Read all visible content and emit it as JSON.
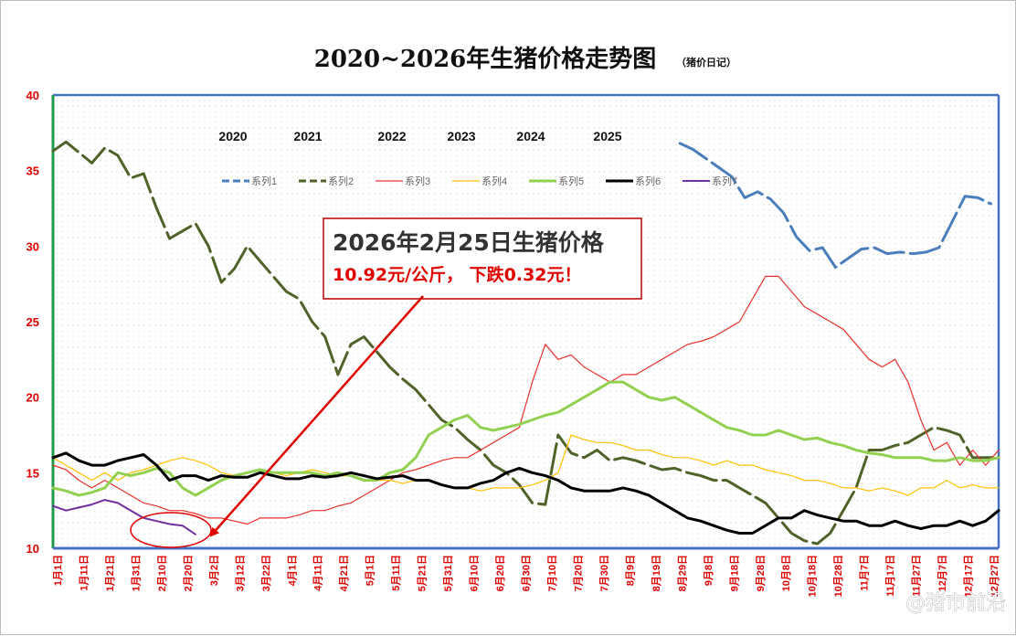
{
  "chart_data": {
    "type": "line",
    "title": "2020~2026年生猪价格走势图",
    "subtitle": "（猪价日记）",
    "ylim": [
      10,
      40
    ],
    "yticks": [
      10,
      15,
      20,
      25,
      30,
      35,
      40
    ],
    "xlabel": "",
    "ylabel": "",
    "x_tick_labels": [
      "1月1日",
      "1月11日",
      "1月21日",
      "1月31日",
      "2月10日",
      "2月20日",
      "3月2日",
      "3月12日",
      "3月22日",
      "4月1日",
      "4月11日",
      "4月21日",
      "5月1日",
      "5月11日",
      "5月21日",
      "5月31日",
      "6月10日",
      "6月20日",
      "6月30日",
      "7月10日",
      "7月20日",
      "7月30日",
      "8月9日",
      "8月19日",
      "8月29日",
      "9月8日",
      "9月18日",
      "9月28日",
      "10月8日",
      "10月18日",
      "10月28日",
      "11月7日",
      "11月17日",
      "11月27日",
      "12月7日",
      "12月17日",
      "12月27日"
    ],
    "year_labels": [
      "2020",
      "2021",
      "2022",
      "2023",
      "2024",
      "2025"
    ],
    "series": [
      {
        "name": "系列1",
        "color": "#4a7ebb",
        "dash": true,
        "width": 3,
        "x": [
          242,
          247,
          252,
          257,
          262,
          267,
          272,
          277,
          282,
          287,
          292,
          297,
          302,
          307,
          312,
          317,
          322,
          327,
          332,
          337,
          342,
          347,
          352,
          357,
          362
        ],
        "values": [
          36.8,
          36.4,
          35.8,
          35.2,
          34.6,
          33.2,
          33.6,
          33.1,
          32.2,
          30.6,
          29.7,
          29.9,
          28.6,
          29.2,
          29.8,
          29.9,
          29.5,
          29.6,
          29.5,
          29.6,
          29.9,
          31.6,
          33.3,
          33.2,
          32.8
        ]
      },
      {
        "name": "系列2",
        "color": "#4f6228",
        "dash": true,
        "width": 3,
        "x": [
          0,
          5,
          10,
          15,
          20,
          25,
          30,
          35,
          40,
          45,
          50,
          55,
          60,
          65,
          70,
          75,
          80,
          85,
          90,
          95,
          100,
          105,
          110,
          115,
          120,
          125,
          130,
          135,
          140,
          145,
          150,
          155,
          160,
          165,
          170,
          175,
          180,
          185,
          190,
          195,
          200,
          205,
          210,
          215,
          220,
          225,
          230,
          235,
          240,
          245,
          250,
          255,
          260,
          265,
          270,
          275,
          280,
          285,
          290,
          295,
          300,
          305,
          310,
          315,
          320,
          325,
          330,
          335,
          340,
          345,
          350,
          355,
          360,
          365
        ],
        "values": [
          36.3,
          36.9,
          36.2,
          35.5,
          36.5,
          36.0,
          34.5,
          34.8,
          32.5,
          30.5,
          31.0,
          31.5,
          30.0,
          27.6,
          28.5,
          30.0,
          29.0,
          28.0,
          27.0,
          26.5,
          25.0,
          24.0,
          21.5,
          23.5,
          24.0,
          23.0,
          22.0,
          21.2,
          20.5,
          19.5,
          18.5,
          18.0,
          17.2,
          16.5,
          15.5,
          15.0,
          14.2,
          13.0,
          12.9,
          17.5,
          16.3,
          16.0,
          16.5,
          15.8,
          16.0,
          15.8,
          15.5,
          15.2,
          15.3,
          15.0,
          14.8,
          14.5,
          14.5,
          14.0,
          13.5,
          13.0,
          12.0,
          11.0,
          10.5,
          10.3,
          11.0,
          12.5,
          14.0,
          16.5,
          16.5,
          16.8,
          17.0,
          17.5,
          18.0,
          17.8,
          17.5,
          16.0,
          16.0,
          16.0
        ]
      },
      {
        "name": "系列3",
        "color": "#e8312b",
        "dash": false,
        "width": 1.2,
        "x": [
          0,
          5,
          10,
          15,
          20,
          25,
          30,
          35,
          40,
          45,
          50,
          55,
          60,
          65,
          70,
          75,
          80,
          85,
          90,
          95,
          100,
          105,
          110,
          115,
          120,
          125,
          130,
          135,
          140,
          145,
          150,
          155,
          160,
          165,
          170,
          175,
          180,
          185,
          190,
          195,
          200,
          205,
          210,
          215,
          220,
          225,
          230,
          235,
          240,
          245,
          250,
          255,
          260,
          265,
          270,
          275,
          280,
          285,
          290,
          295,
          300,
          305,
          310,
          315,
          320,
          325,
          330,
          335,
          340,
          345,
          350,
          355,
          360,
          365
        ],
        "values": [
          15.5,
          15.2,
          14.5,
          14.0,
          14.5,
          14.0,
          13.5,
          13.0,
          12.8,
          12.5,
          12.5,
          12.3,
          12.0,
          12.0,
          11.8,
          11.6,
          12.0,
          12.0,
          12.0,
          12.2,
          12.5,
          12.5,
          12.8,
          13.0,
          13.5,
          14.0,
          14.5,
          15.0,
          15.2,
          15.5,
          15.8,
          16.0,
          16.0,
          16.5,
          17.0,
          17.5,
          18.0,
          21.0,
          23.5,
          22.5,
          22.8,
          22.0,
          21.5,
          21.0,
          21.5,
          21.5,
          22.0,
          22.5,
          23.0,
          23.5,
          23.7,
          24.0,
          24.5,
          25.0,
          26.5,
          28.0,
          28.0,
          27.0,
          26.0,
          25.5,
          25.0,
          24.5,
          23.5,
          22.5,
          22.0,
          22.5,
          21.0,
          18.5,
          16.5,
          17.0,
          15.5,
          16.5,
          15.5,
          16.5
        ]
      },
      {
        "name": "系列4",
        "color": "#ffc000",
        "dash": false,
        "width": 1.2,
        "x": [
          0,
          5,
          10,
          15,
          20,
          25,
          30,
          35,
          40,
          45,
          50,
          55,
          60,
          65,
          70,
          75,
          80,
          85,
          90,
          95,
          100,
          105,
          110,
          115,
          120,
          125,
          130,
          135,
          140,
          145,
          150,
          155,
          160,
          165,
          170,
          175,
          180,
          185,
          190,
          195,
          200,
          205,
          210,
          215,
          220,
          225,
          230,
          235,
          240,
          245,
          250,
          255,
          260,
          265,
          270,
          275,
          280,
          285,
          290,
          295,
          300,
          305,
          310,
          315,
          320,
          325,
          330,
          335,
          340,
          345,
          350,
          355,
          360,
          365
        ],
        "values": [
          16.0,
          15.5,
          15.0,
          14.5,
          15.0,
          14.5,
          15.0,
          15.2,
          15.5,
          15.8,
          16.0,
          15.8,
          15.5,
          15.0,
          14.8,
          15.0,
          15.2,
          15.0,
          14.8,
          15.0,
          15.2,
          15.0,
          14.8,
          14.8,
          14.5,
          14.5,
          14.5,
          14.3,
          14.5,
          14.5,
          14.2,
          14.0,
          14.0,
          13.8,
          14.0,
          14.0,
          14.0,
          14.2,
          14.5,
          15.0,
          17.5,
          17.2,
          17.0,
          17.0,
          16.8,
          16.5,
          16.5,
          16.2,
          16.0,
          16.0,
          15.8,
          15.5,
          15.8,
          15.5,
          15.5,
          15.2,
          15.0,
          14.8,
          14.5,
          14.5,
          14.3,
          14.0,
          14.0,
          13.8,
          14.0,
          13.8,
          13.5,
          14.0,
          14.0,
          14.5,
          14.0,
          14.2,
          14.0,
          14.0
        ]
      },
      {
        "name": "系列5",
        "color": "#92d050",
        "dash": false,
        "width": 3,
        "x": [
          0,
          5,
          10,
          15,
          20,
          25,
          30,
          35,
          40,
          45,
          50,
          55,
          60,
          65,
          70,
          75,
          80,
          85,
          90,
          95,
          100,
          105,
          110,
          115,
          120,
          125,
          130,
          135,
          140,
          145,
          150,
          155,
          160,
          165,
          170,
          175,
          180,
          185,
          190,
          195,
          200,
          205,
          210,
          215,
          220,
          225,
          230,
          235,
          240,
          245,
          250,
          255,
          260,
          265,
          270,
          275,
          280,
          285,
          290,
          295,
          300,
          305,
          310,
          315,
          320,
          325,
          330,
          335,
          340,
          345,
          350,
          355,
          360,
          365
        ],
        "values": [
          14.0,
          13.8,
          13.5,
          13.7,
          14.0,
          15.0,
          14.8,
          15.0,
          15.3,
          15.0,
          14.0,
          13.5,
          14.0,
          14.5,
          14.8,
          15.0,
          15.2,
          15.0,
          15.0,
          15.0,
          15.0,
          14.8,
          15.0,
          14.8,
          14.5,
          14.5,
          15.0,
          15.2,
          16.0,
          17.5,
          18.0,
          18.5,
          18.8,
          18.0,
          17.8,
          18.0,
          18.2,
          18.5,
          18.8,
          19.0,
          19.5,
          20.0,
          20.5,
          21.0,
          21.0,
          20.5,
          20.0,
          19.8,
          20.0,
          19.5,
          19.0,
          18.5,
          18.0,
          17.8,
          17.5,
          17.5,
          17.8,
          17.5,
          17.2,
          17.3,
          17.0,
          16.8,
          16.5,
          16.3,
          16.2,
          16.0,
          16.0,
          16.0,
          15.8,
          15.8,
          16.0,
          15.8,
          15.8,
          16.0
        ]
      },
      {
        "name": "系列6",
        "color": "#000000",
        "dash": false,
        "width": 3,
        "x": [
          0,
          5,
          10,
          15,
          20,
          25,
          30,
          35,
          40,
          45,
          50,
          55,
          60,
          65,
          70,
          75,
          80,
          85,
          90,
          95,
          100,
          105,
          110,
          115,
          120,
          125,
          130,
          135,
          140,
          145,
          150,
          155,
          160,
          165,
          170,
          175,
          180,
          185,
          190,
          195,
          200,
          205,
          210,
          215,
          220,
          225,
          230,
          235,
          240,
          245,
          250,
          255,
          260,
          265,
          270,
          275,
          280,
          285,
          290,
          295,
          300,
          305,
          310,
          315,
          320,
          325,
          330,
          335,
          340,
          345,
          350,
          355,
          360,
          365
        ],
        "values": [
          16.0,
          16.3,
          15.8,
          15.5,
          15.5,
          15.8,
          16.0,
          16.2,
          15.5,
          14.5,
          14.8,
          14.8,
          14.5,
          14.8,
          14.7,
          14.7,
          15.0,
          14.8,
          14.6,
          14.6,
          14.8,
          14.7,
          14.8,
          15.0,
          14.8,
          14.6,
          14.7,
          14.8,
          14.5,
          14.5,
          14.2,
          14.0,
          14.0,
          14.3,
          14.5,
          15.0,
          15.3,
          15.0,
          14.8,
          14.5,
          14.0,
          13.8,
          13.8,
          13.8,
          14.0,
          13.8,
          13.5,
          13.0,
          12.5,
          12.0,
          11.8,
          11.5,
          11.2,
          11.0,
          11.0,
          11.5,
          12.0,
          12.0,
          12.5,
          12.2,
          12.0,
          11.8,
          11.8,
          11.5,
          11.5,
          11.8,
          11.5,
          11.3,
          11.5,
          11.5,
          11.8,
          11.5,
          11.8,
          12.5
        ]
      },
      {
        "name": "系列7",
        "color": "#7030a0",
        "dash": false,
        "width": 2,
        "x": [
          0,
          5,
          10,
          15,
          20,
          25,
          30,
          35,
          40,
          45,
          50,
          55
        ],
        "values": [
          12.8,
          12.5,
          12.7,
          12.9,
          13.2,
          13.0,
          12.5,
          12.0,
          11.8,
          11.6,
          11.5,
          10.92
        ]
      }
    ],
    "annotation": {
      "title": "2026年2月25日生猪价格",
      "subtitle": "10.92元/公斤，   下跌0.32元！"
    },
    "legend_position": "top-center"
  },
  "watermark": "@猪市前沿"
}
